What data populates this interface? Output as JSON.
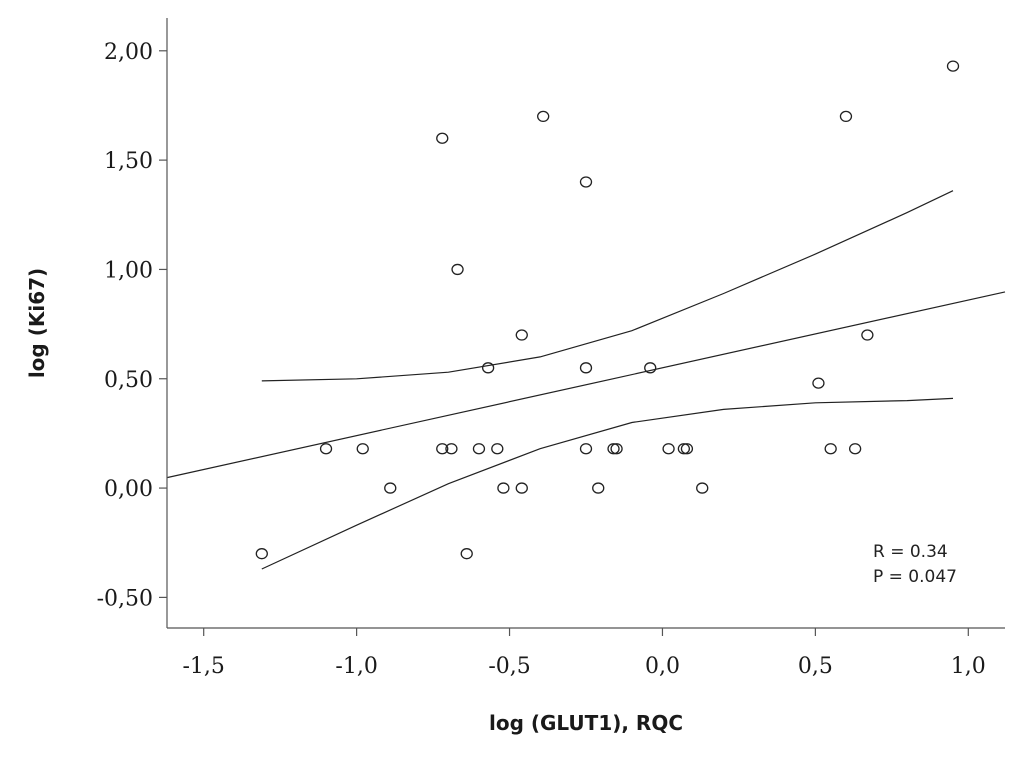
{
  "chart_data": {
    "type": "scatter",
    "title": "",
    "xlabel": "log (GLUT1), RQC",
    "ylabel": "log (Ki67)",
    "xlim": [
      -1.62,
      1.12
    ],
    "ylim": [
      -0.64,
      2.15
    ],
    "x_ticks": [
      -1.5,
      -1.0,
      -0.5,
      0.0,
      0.5,
      1.0
    ],
    "x_tick_labels": [
      "-1,5",
      "-1,0",
      "-0,5",
      "0,0",
      "0,5",
      "1,0"
    ],
    "y_ticks": [
      -0.5,
      0.0,
      0.5,
      1.0,
      1.5,
      2.0
    ],
    "y_tick_labels": [
      "-0,50",
      "0,00",
      "0,50",
      "1,00",
      "1,50",
      "2,00"
    ],
    "grid": false,
    "points": [
      {
        "x": -1.31,
        "y": -0.3
      },
      {
        "x": -1.1,
        "y": 0.18
      },
      {
        "x": -0.98,
        "y": 0.18
      },
      {
        "x": -0.89,
        "y": 0.0
      },
      {
        "x": -0.72,
        "y": 1.6
      },
      {
        "x": -0.72,
        "y": 0.18
      },
      {
        "x": -0.69,
        "y": 0.18
      },
      {
        "x": -0.67,
        "y": 1.0
      },
      {
        "x": -0.64,
        "y": -0.3
      },
      {
        "x": -0.6,
        "y": 0.18
      },
      {
        "x": -0.57,
        "y": 0.55
      },
      {
        "x": -0.54,
        "y": 0.18
      },
      {
        "x": -0.52,
        "y": 0.0
      },
      {
        "x": -0.46,
        "y": 0.7
      },
      {
        "x": -0.46,
        "y": 0.0
      },
      {
        "x": -0.39,
        "y": 1.7
      },
      {
        "x": -0.25,
        "y": 1.4
      },
      {
        "x": -0.25,
        "y": 0.55
      },
      {
        "x": -0.25,
        "y": 0.18
      },
      {
        "x": -0.21,
        "y": 0.0
      },
      {
        "x": -0.16,
        "y": 0.18
      },
      {
        "x": -0.15,
        "y": 0.18
      },
      {
        "x": -0.04,
        "y": 0.55
      },
      {
        "x": 0.02,
        "y": 0.18
      },
      {
        "x": 0.07,
        "y": 0.18
      },
      {
        "x": 0.08,
        "y": 0.18
      },
      {
        "x": 0.13,
        "y": 0.0
      },
      {
        "x": 0.51,
        "y": 0.48
      },
      {
        "x": 0.55,
        "y": 0.18
      },
      {
        "x": 0.6,
        "y": 1.7
      },
      {
        "x": 0.63,
        "y": 0.18
      },
      {
        "x": 0.67,
        "y": 0.7
      },
      {
        "x": 0.95,
        "y": 1.93
      }
    ],
    "fit_line": {
      "slope": 0.31,
      "intercept": 0.55
    },
    "ci_upper": [
      {
        "x": -1.31,
        "y": 0.49
      },
      {
        "x": -1.0,
        "y": 0.5
      },
      {
        "x": -0.7,
        "y": 0.53
      },
      {
        "x": -0.4,
        "y": 0.6
      },
      {
        "x": -0.1,
        "y": 0.72
      },
      {
        "x": 0.2,
        "y": 0.89
      },
      {
        "x": 0.5,
        "y": 1.07
      },
      {
        "x": 0.8,
        "y": 1.26
      },
      {
        "x": 0.95,
        "y": 1.36
      }
    ],
    "ci_lower": [
      {
        "x": -1.31,
        "y": -0.37
      },
      {
        "x": -1.0,
        "y": -0.17
      },
      {
        "x": -0.7,
        "y": 0.02
      },
      {
        "x": -0.4,
        "y": 0.18
      },
      {
        "x": -0.1,
        "y": 0.3
      },
      {
        "x": 0.2,
        "y": 0.36
      },
      {
        "x": 0.5,
        "y": 0.39
      },
      {
        "x": 0.8,
        "y": 0.4
      },
      {
        "x": 0.95,
        "y": 0.41
      }
    ],
    "annotations": [
      "R = 0.34",
      "P = 0.047"
    ]
  }
}
